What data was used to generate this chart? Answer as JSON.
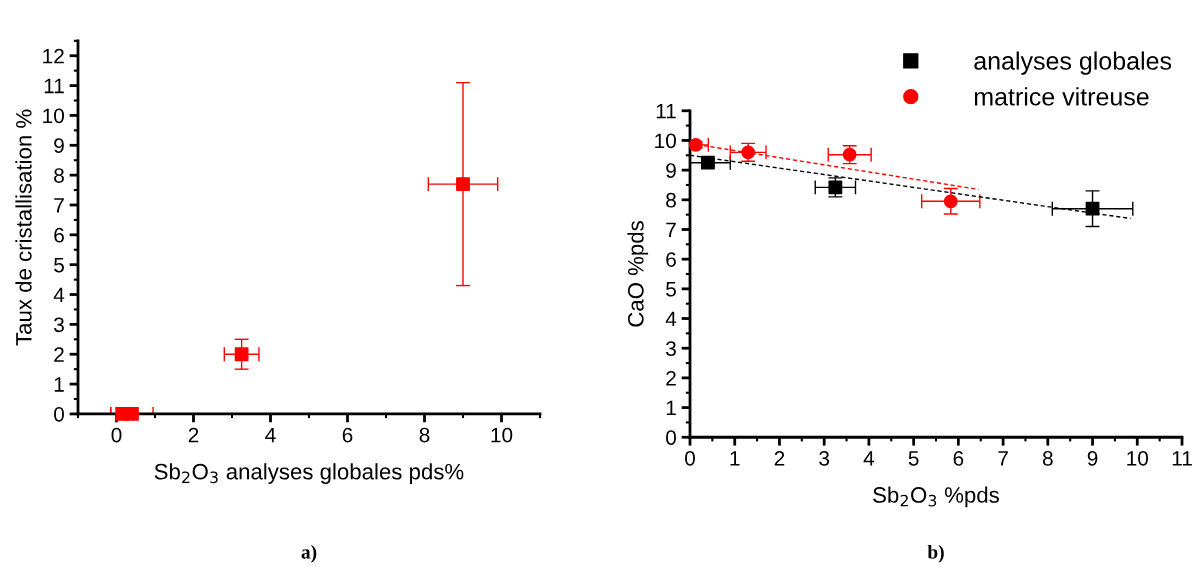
{
  "chart_data": [
    {
      "type": "scatter",
      "xlabel": "Sb$_{2}$O$_{3}$ analyses globales pds%",
      "ylabel": "Taux de cristallisation %",
      "xlim": [
        -1,
        11
      ],
      "ylim": [
        0,
        12.5
      ],
      "xticks": [
        0,
        2,
        4,
        6,
        8,
        10
      ],
      "yticks": [
        0,
        1,
        2,
        3,
        4,
        5,
        6,
        7,
        8,
        9,
        10,
        11,
        12
      ],
      "marker": "square",
      "grid": false,
      "legend": false,
      "annotations": [
        "a)"
      ],
      "series": [
        {
          "color": "#ff0000",
          "x": [
            0.15,
            0.4,
            3.25,
            9
          ],
          "values": [
            0,
            0,
            2,
            7.7
          ],
          "errors": [
            0.2,
            0.2,
            0.5,
            3.4
          ],
          "xerrors": [
            0.3,
            0.55,
            0.45,
            0.9
          ]
        }
      ]
    },
    {
      "type": "scatter",
      "xlabel": "Sb$_{2}$O$_{3}$ %pds",
      "ylabel": "CaO %pds",
      "xlim": [
        0,
        11
      ],
      "ylim": [
        0,
        11
      ],
      "xticks": [
        0,
        1,
        2,
        3,
        4,
        5,
        6,
        7,
        8,
        9,
        10,
        11
      ],
      "yticks": [
        0,
        1,
        2,
        3,
        4,
        5,
        6,
        7,
        8,
        9,
        10,
        11
      ],
      "grid": false,
      "legend": "top right",
      "annotations": [
        "b)"
      ],
      "series": [
        {
          "name": "analyses globales",
          "color": "#000000",
          "marker": "square",
          "x": [
            0.4,
            3.25,
            9
          ],
          "values": [
            9.25,
            8.42,
            7.7
          ],
          "errors": [
            0.1,
            0.32,
            0.6
          ],
          "xerrors": [
            0.5,
            0.45,
            0.9
          ]
        },
        {
          "name": "matrice vitreuse",
          "color": "#ff0000",
          "marker": "circle",
          "x": [
            0.13,
            1.3,
            3.57,
            5.83
          ],
          "values": [
            9.85,
            9.6,
            9.52,
            7.95
          ],
          "errors": [
            0.1,
            0.3,
            0.3,
            0.43
          ],
          "xerrors": [
            0.28,
            0.4,
            0.48,
            0.65
          ]
        },
        {
          "type": "line",
          "color": "#000000",
          "line_style": "dashed",
          "marker": "none",
          "x": [
            0,
            9.85
          ],
          "values": [
            9.5,
            7.37
          ]
        },
        {
          "type": "line",
          "color": "#ff0000",
          "line_style": "dashed",
          "marker": "none",
          "x": [
            0,
            6.45
          ],
          "values": [
            9.9,
            8.35
          ]
        }
      ]
    }
  ]
}
